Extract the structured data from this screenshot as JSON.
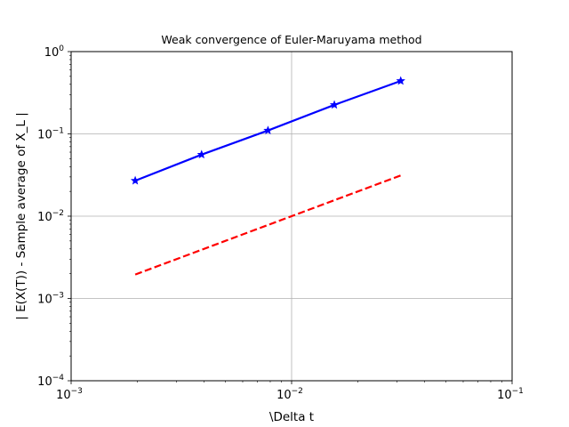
{
  "chart_data": {
    "type": "line",
    "title": "Weak convergence of Euler-Maruyama method",
    "xlabel": "\\Delta t",
    "ylabel": "| E(X(T)) - Sample average of X_L |",
    "xscale": "log",
    "yscale": "log",
    "xlim": [
      0.001,
      0.1
    ],
    "ylim": [
      0.0001,
      1
    ],
    "grid": true,
    "x_ticks": [
      {
        "base": "10",
        "exp": "−3",
        "value": 0.001
      },
      {
        "base": "10",
        "exp": "−2",
        "value": 0.01
      },
      {
        "base": "10",
        "exp": "−1",
        "value": 0.1
      }
    ],
    "y_ticks": [
      {
        "base": "10",
        "exp": "−4",
        "value": 0.0001
      },
      {
        "base": "10",
        "exp": "−3",
        "value": 0.001
      },
      {
        "base": "10",
        "exp": "−2",
        "value": 0.01
      },
      {
        "base": "10",
        "exp": "−1",
        "value": 0.1
      },
      {
        "base": "10",
        "exp": "0",
        "value": 1
      }
    ],
    "series": [
      {
        "x": [
          0.001953125,
          0.00390625,
          0.0078125,
          0.015625,
          0.03125
        ],
        "y": [
          0.027,
          0.056,
          0.11,
          0.225,
          0.44
        ],
        "color": "#0000ff",
        "style": "solid",
        "marker": "star"
      },
      {
        "x": [
          0.001953125,
          0.03125
        ],
        "y": [
          0.001953125,
          0.03125
        ],
        "color": "#ff0000",
        "style": "dashed",
        "marker": "none"
      }
    ]
  }
}
